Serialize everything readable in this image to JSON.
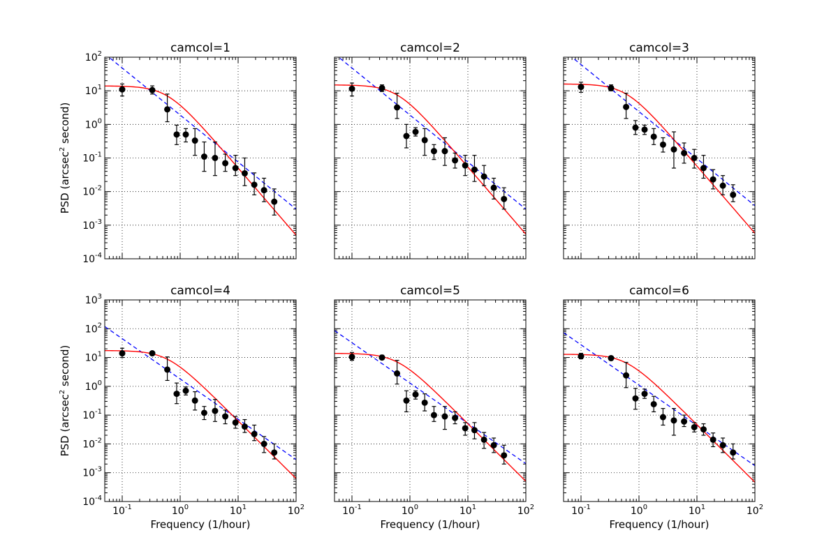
{
  "chart_data": {
    "type": "scatter",
    "layout": {
      "rows": 2,
      "cols": 3,
      "sharex": true,
      "sharey_rows": true
    },
    "xscale": "log",
    "yscale": "log",
    "xlim": [
      0.05,
      100
    ],
    "xticks": [
      {
        "base": "10",
        "exp": "-1"
      },
      {
        "base": "10",
        "exp": "0"
      },
      {
        "base": "10",
        "exp": "1"
      },
      {
        "base": "10",
        "exp": "2"
      }
    ],
    "xlabel": "Frequency (1/hour)",
    "ylabel": {
      "pre": "PSD (arcsec",
      "sup": "2",
      "post": "  second)"
    },
    "rows": [
      {
        "ylim": [
          0.0001,
          100
        ],
        "yticks": [
          {
            "base": "10",
            "exp": "-4"
          },
          {
            "base": "10",
            "exp": "-3"
          },
          {
            "base": "10",
            "exp": "-2"
          },
          {
            "base": "10",
            "exp": "-1"
          },
          {
            "base": "10",
            "exp": "0"
          },
          {
            "base": "10",
            "exp": "1"
          },
          {
            "base": "10",
            "exp": "2"
          }
        ]
      },
      {
        "ylim": [
          0.0001,
          1000
        ],
        "yticks": [
          {
            "base": "10",
            "exp": "-4"
          },
          {
            "base": "10",
            "exp": "-3"
          },
          {
            "base": "10",
            "exp": "-2"
          },
          {
            "base": "10",
            "exp": "-1"
          },
          {
            "base": "10",
            "exp": "0"
          },
          {
            "base": "10",
            "exp": "1"
          },
          {
            "base": "10",
            "exp": "2"
          },
          {
            "base": "10",
            "exp": "3"
          }
        ]
      }
    ],
    "freq": [
      0.1,
      0.33,
      0.6,
      0.87,
      1.25,
      1.8,
      2.6,
      4.0,
      6.0,
      9.0,
      13.0,
      19.0,
      28.0,
      42.0
    ],
    "styles": {
      "points": "#000000",
      "model": "#ff0000",
      "powerlaw": "#0000ff"
    },
    "panels": [
      {
        "title": "camcol=1",
        "psd": [
          11,
          10.5,
          2.8,
          0.5,
          0.5,
          0.33,
          0.11,
          0.1,
          0.07,
          0.05,
          0.035,
          0.016,
          0.011,
          0.005
        ],
        "err_low": [
          7,
          8,
          1.2,
          0.25,
          0.3,
          0.12,
          0.04,
          0.03,
          0.04,
          0.03,
          0.015,
          0.008,
          0.005,
          0.002
        ],
        "err_high": [
          16,
          14,
          8,
          0.95,
          0.75,
          0.75,
          0.3,
          0.3,
          0.13,
          0.12,
          0.1,
          0.036,
          0.025,
          0.012
        ],
        "model": {
          "amp": 14,
          "f0": 0.6,
          "slope": 2
        },
        "powerlaw": {
          "norm": 1.9,
          "index": -1.4
        }
      },
      {
        "title": "camcol=2",
        "psd": [
          11.5,
          12,
          3.2,
          0.45,
          0.6,
          0.34,
          0.16,
          0.16,
          0.085,
          0.06,
          0.045,
          0.028,
          0.013,
          0.006
        ],
        "err_low": [
          7,
          9.5,
          1.5,
          0.2,
          0.45,
          0.12,
          0.09,
          0.06,
          0.05,
          0.03,
          0.02,
          0.015,
          0.006,
          0.003
        ],
        "err_high": [
          17,
          15,
          8.5,
          1,
          0.8,
          0.75,
          0.25,
          0.4,
          0.14,
          0.12,
          0.12,
          0.06,
          0.025,
          0.013
        ],
        "model": {
          "amp": 15,
          "f0": 0.6,
          "slope": 2
        },
        "powerlaw": {
          "norm": 1.9,
          "index": -1.4
        }
      },
      {
        "title": "camcol=3",
        "psd": [
          13,
          12,
          3.3,
          0.8,
          0.7,
          0.43,
          0.25,
          0.18,
          0.14,
          0.1,
          0.05,
          0.023,
          0.015,
          0.008
        ],
        "err_low": [
          9,
          10,
          1.5,
          0.5,
          0.5,
          0.25,
          0.15,
          0.05,
          0.07,
          0.05,
          0.025,
          0.012,
          0.008,
          0.005
        ],
        "err_high": [
          18,
          15,
          8.5,
          1.3,
          0.95,
          0.75,
          0.4,
          0.6,
          0.28,
          0.18,
          0.12,
          0.045,
          0.03,
          0.016
        ],
        "model": {
          "amp": 16,
          "f0": 0.6,
          "slope": 2
        },
        "powerlaw": {
          "norm": 2.4,
          "index": -1.4
        }
      },
      {
        "title": "camcol=4",
        "psd": [
          14,
          14,
          3.8,
          0.55,
          0.7,
          0.32,
          0.12,
          0.14,
          0.09,
          0.055,
          0.04,
          0.022,
          0.01,
          0.005
        ],
        "err_low": [
          10,
          12,
          1.6,
          0.25,
          0.5,
          0.15,
          0.07,
          0.06,
          0.05,
          0.035,
          0.025,
          0.013,
          0.005,
          0.003
        ],
        "err_high": [
          21,
          16.5,
          10.5,
          1.3,
          0.95,
          0.65,
          0.2,
          0.35,
          0.15,
          0.09,
          0.07,
          0.045,
          0.018,
          0.01
        ],
        "model": {
          "amp": 17.5,
          "f0": 0.6,
          "slope": 2
        },
        "powerlaw": {
          "norm": 1.8,
          "index": -1.4
        }
      },
      {
        "title": "camcol=5",
        "psd": [
          10.5,
          10,
          2.8,
          0.32,
          0.52,
          0.27,
          0.1,
          0.09,
          0.08,
          0.035,
          0.03,
          0.014,
          0.009,
          0.004
        ],
        "err_low": [
          8,
          8.5,
          1.2,
          0.13,
          0.36,
          0.14,
          0.06,
          0.032,
          0.05,
          0.02,
          0.015,
          0.007,
          0.005,
          0.002
        ],
        "err_high": [
          15,
          12,
          8,
          0.7,
          0.7,
          0.55,
          0.2,
          0.2,
          0.13,
          0.055,
          0.055,
          0.025,
          0.016,
          0.009
        ],
        "model": {
          "amp": 14,
          "f0": 0.6,
          "slope": 2
        },
        "powerlaw": {
          "norm": 1.3,
          "index": -1.4
        }
      },
      {
        "title": "camcol=6",
        "psd": [
          11,
          9.5,
          2.4,
          0.38,
          0.55,
          0.24,
          0.085,
          0.065,
          0.06,
          0.038,
          0.032,
          0.014,
          0.009,
          0.005
        ],
        "err_low": [
          9,
          8,
          0.9,
          0.16,
          0.38,
          0.13,
          0.045,
          0.02,
          0.04,
          0.026,
          0.02,
          0.008,
          0.005,
          0.003
        ],
        "err_high": [
          14,
          11,
          6.8,
          0.85,
          0.8,
          0.45,
          0.17,
          0.17,
          0.1,
          0.055,
          0.05,
          0.024,
          0.016,
          0.01
        ],
        "model": {
          "amp": 13,
          "f0": 0.6,
          "slope": 2
        },
        "powerlaw": {
          "norm": 1.1,
          "index": -1.4
        }
      }
    ]
  }
}
